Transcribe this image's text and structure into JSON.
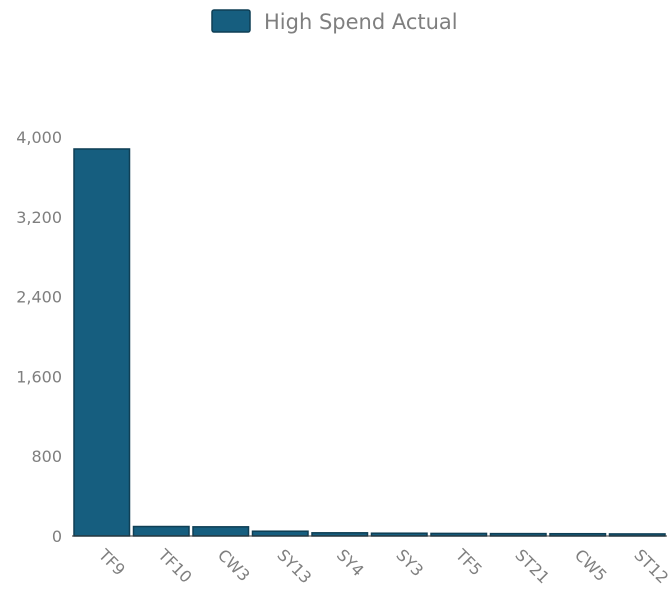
{
  "colors": {
    "bar_fill": "#165e7f",
    "bar_stroke": "#0f3f55",
    "text": "#7f7f7f",
    "axis": "#333333"
  },
  "chart_data": {
    "type": "bar",
    "categories": [
      "TF9",
      "TF10",
      "CW3",
      "SY13",
      "SY4",
      "SY3",
      "TF5",
      "ST21",
      "CW5",
      "ST12"
    ],
    "series": [
      {
        "name": "High Spend Actual",
        "values": [
          3880,
          95,
          92,
          48,
          32,
          28,
          26,
          24,
          23,
          21
        ]
      }
    ],
    "title": "",
    "xlabel": "",
    "ylabel": "",
    "ylim": [
      0,
      4000
    ],
    "yticks": [
      0,
      800,
      1600,
      2400,
      3200,
      4000
    ],
    "ytick_labels": [
      "0",
      "800",
      "1,600",
      "2,400",
      "3,200",
      "4,000"
    ],
    "grid": false,
    "legend_position": "top-center"
  }
}
